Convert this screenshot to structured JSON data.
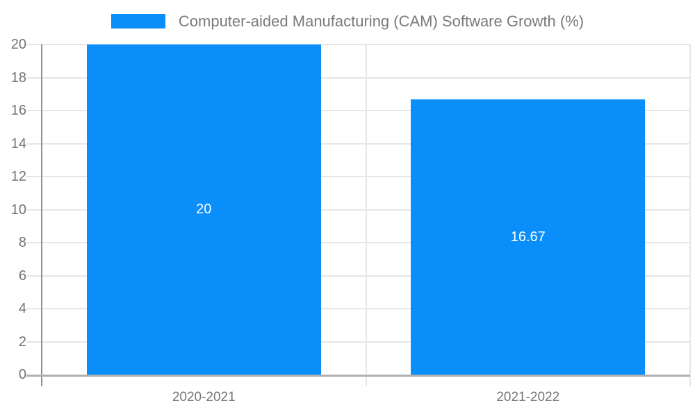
{
  "legend": {
    "label": "Computer-aided Manufacturing (CAM) Software Growth (%)"
  },
  "colors": {
    "bar": "#0a8ef9",
    "grid": "#e6e6e6",
    "divider": "#e6e6e6",
    "x_axis_line": "#b0b0b0",
    "y_axis_line": "#8f8f8f",
    "axis_text": "#757575",
    "value_text": "#ffffff"
  },
  "chart_data": {
    "type": "bar",
    "title": "Computer-aided Manufacturing (CAM) Software Growth (%)",
    "categories": [
      "2020-2021",
      "2021-2022"
    ],
    "values": [
      20,
      16.67
    ],
    "value_labels": [
      "20",
      "16.67"
    ],
    "xlabel": "",
    "ylabel": "",
    "ylim": [
      0,
      20
    ],
    "yticks": [
      0,
      2,
      4,
      6,
      8,
      10,
      12,
      14,
      16,
      18,
      20
    ],
    "grid": true,
    "legend_position": "top",
    "value_label_position": "center-inside-bar"
  }
}
